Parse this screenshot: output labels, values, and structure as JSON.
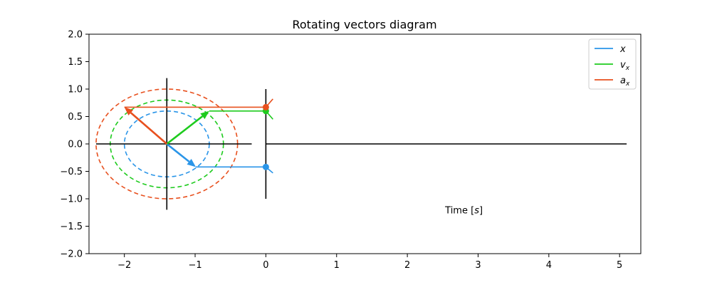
{
  "chart_data": {
    "type": "line",
    "title": "Rotating vectors diagram",
    "xlabel": "Time [s]",
    "xlabel_parts": {
      "prefix": "Time [",
      "var": "s",
      "suffix": "]"
    },
    "ylabel": "",
    "xlim": [
      -2.5,
      5.3
    ],
    "ylim": [
      -2.0,
      2.0
    ],
    "grid": false,
    "legend_position": "top-right",
    "xticks": [
      -2,
      -1,
      0,
      1,
      2,
      3,
      4,
      5
    ],
    "xtick_labels": [
      "−2",
      "−1",
      "0",
      "1",
      "2",
      "3",
      "4",
      "5"
    ],
    "yticks": [
      -2.0,
      -1.5,
      -1.0,
      -0.5,
      0.0,
      0.5,
      1.0,
      1.5,
      2.0
    ],
    "ytick_labels": [
      "−2.0",
      "−1.5",
      "−1.0",
      "−0.5",
      "0.0",
      "0.5",
      "1.0",
      "1.5",
      "2.0"
    ],
    "phasor_center": [
      -1.4,
      0.0
    ],
    "circle_axes": {
      "x_range": [
        -2.4,
        -0.2
      ],
      "y_range": [
        -1.2,
        1.2
      ]
    },
    "time_axes": {
      "x_range": [
        0.0,
        5.1
      ],
      "y_range": [
        -1.0,
        1.0
      ]
    },
    "series": [
      {
        "name": "x",
        "legend_main": "x",
        "legend_sub": "",
        "color": "#2a95e8",
        "radius": 0.6,
        "tip": [
          -0.99,
          -0.42
        ],
        "time_value": -0.42,
        "tangent": [
          [
            0.0,
            -0.42
          ],
          [
            0.1,
            -0.53
          ]
        ]
      },
      {
        "name": "v_x",
        "legend_main": "v",
        "legend_sub": "x",
        "color": "#1ecb1e",
        "radius": 0.8,
        "tip": [
          -0.8,
          0.6
        ],
        "time_value": 0.6,
        "tangent": [
          [
            0.0,
            0.6
          ],
          [
            0.1,
            0.45
          ]
        ]
      },
      {
        "name": "a_x",
        "legend_main": "a",
        "legend_sub": "x",
        "color": "#e8501e",
        "radius": 1.0,
        "tip": [
          -2.0,
          0.67
        ],
        "time_value": 0.67,
        "tangent": [
          [
            0.0,
            0.67
          ],
          [
            0.1,
            0.82
          ]
        ]
      }
    ]
  }
}
